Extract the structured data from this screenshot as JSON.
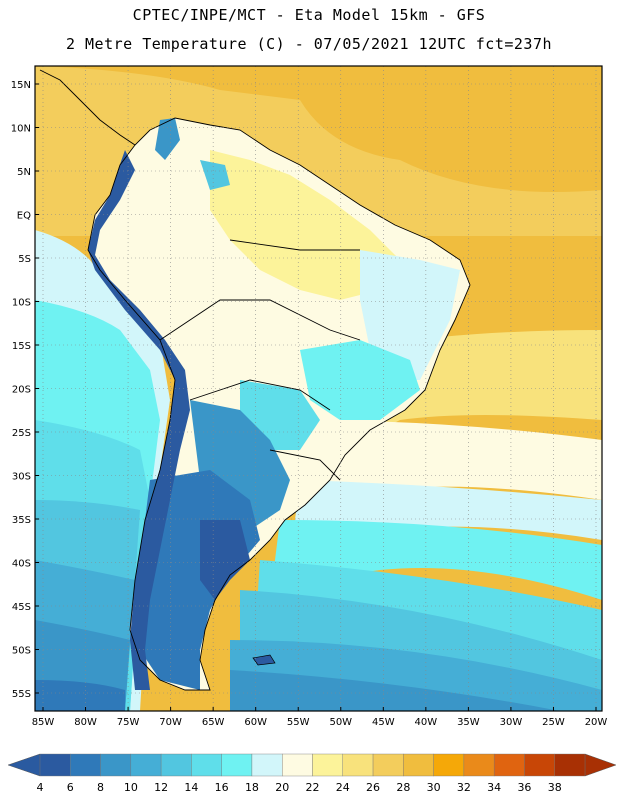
{
  "header": {
    "line1": "CPTEC/INPE/MCT -  Eta Model 15km - GFS",
    "line2": "2 Metre Temperature (C) - 07/05/2021 12UTC fct=237h"
  },
  "map": {
    "lat_labels": [
      "15N",
      "10N",
      "5N",
      "EQ",
      "5S",
      "10S",
      "15S",
      "20S",
      "25S",
      "30S",
      "35S",
      "40S",
      "45S",
      "50S",
      "55S"
    ],
    "lon_labels": [
      "85W",
      "80W",
      "75W",
      "70W",
      "65W",
      "60W",
      "55W",
      "50W",
      "45W",
      "40W",
      "35W",
      "30W",
      "25W",
      "20W"
    ],
    "lat_range": [
      15,
      -55
    ],
    "lon_range": [
      -85,
      -20
    ],
    "grid": true
  },
  "legend": {
    "levels": [
      "4",
      "6",
      "8",
      "10",
      "12",
      "14",
      "16",
      "18",
      "20",
      "22",
      "24",
      "26",
      "28",
      "30",
      "32",
      "34",
      "36",
      "38"
    ],
    "colors": [
      "#2b5aa0",
      "#2f79b9",
      "#3a96c8",
      "#45aed6",
      "#52c6e0",
      "#5fdeea",
      "#6ff2f2",
      "#d2f6fa",
      "#fefbe2",
      "#fcf39a",
      "#f8e27c",
      "#f3cd5c",
      "#f0bd3e",
      "#f5a808",
      "#ea8a1a",
      "#e06410",
      "#c84606",
      "#a83004"
    ],
    "low_color": "#2a5aa0",
    "high_color": "#a83004"
  },
  "colors": {
    "ocean_warm": "#f3cd5c",
    "ocean_mid": "#fcf39a",
    "ocean_cool": "#5fdeea",
    "ocean_cold": "#2f79b9",
    "land_hot": "#fefbe2",
    "andes": "#2b5aa0",
    "coast_line": "#000000"
  }
}
